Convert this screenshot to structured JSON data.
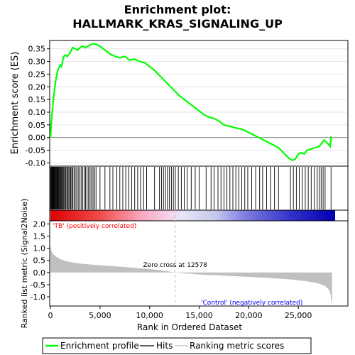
{
  "title_line1": "Enrichment plot:",
  "title_line2": "HALLMARK_KRAS_SIGNALING_UP",
  "legend": {
    "enrichment": "Enrichment profile",
    "hits": "Hits",
    "ranking": "Ranking metric scores"
  },
  "colors": {
    "es_line": "#00ff00",
    "hits": "#000000",
    "metric_fill": "#c0c0c0",
    "positive": "#ff0000",
    "negative": "#0000ff",
    "zero_line": "#c0c0c0",
    "pos_label": "#ff0000",
    "neg_label": "#0000ff"
  },
  "chart_data": [
    {
      "type": "line",
      "panel": "enrichment-score",
      "ylabel": "Enrichment score (ES)",
      "ylim": [
        -0.11,
        0.38
      ],
      "y_ticks": [
        -0.1,
        -0.05,
        0.0,
        0.05,
        0.1,
        0.15,
        0.2,
        0.25,
        0.3,
        0.35
      ],
      "y_tick_labels": [
        "-0.10",
        "-0.05",
        "0.00",
        "0.05",
        "0.10",
        "0.15",
        "0.20",
        "0.25",
        "0.30",
        "0.35"
      ],
      "grid": true,
      "points": [
        [
          0,
          0.0
        ],
        [
          80,
          0.05
        ],
        [
          180,
          0.1
        ],
        [
          300,
          0.15
        ],
        [
          420,
          0.19
        ],
        [
          550,
          0.23
        ],
        [
          700,
          0.26
        ],
        [
          850,
          0.275
        ],
        [
          1000,
          0.285
        ],
        [
          1100,
          0.28
        ],
        [
          1250,
          0.305
        ],
        [
          1350,
          0.32
        ],
        [
          1500,
          0.325
        ],
        [
          1700,
          0.32
        ],
        [
          1900,
          0.33
        ],
        [
          2050,
          0.34
        ],
        [
          2250,
          0.355
        ],
        [
          2500,
          0.35
        ],
        [
          2750,
          0.345
        ],
        [
          3000,
          0.355
        ],
        [
          3200,
          0.36
        ],
        [
          3500,
          0.355
        ],
        [
          3800,
          0.36
        ],
        [
          4000,
          0.365
        ],
        [
          4300,
          0.37
        ],
        [
          4600,
          0.368
        ],
        [
          5000,
          0.36
        ],
        [
          5500,
          0.345
        ],
        [
          6000,
          0.33
        ],
        [
          6500,
          0.32
        ],
        [
          7000,
          0.315
        ],
        [
          7500,
          0.32
        ],
        [
          8000,
          0.305
        ],
        [
          8500,
          0.31
        ],
        [
          9000,
          0.3
        ],
        [
          9500,
          0.295
        ],
        [
          10000,
          0.28
        ],
        [
          10500,
          0.265
        ],
        [
          11000,
          0.245
        ],
        [
          11500,
          0.225
        ],
        [
          12000,
          0.205
        ],
        [
          12500,
          0.185
        ],
        [
          13000,
          0.165
        ],
        [
          13500,
          0.15
        ],
        [
          14000,
          0.135
        ],
        [
          14500,
          0.12
        ],
        [
          15000,
          0.105
        ],
        [
          15500,
          0.09
        ],
        [
          16000,
          0.08
        ],
        [
          16500,
          0.075
        ],
        [
          17000,
          0.065
        ],
        [
          17500,
          0.05
        ],
        [
          18000,
          0.045
        ],
        [
          18500,
          0.04
        ],
        [
          19000,
          0.035
        ],
        [
          19500,
          0.03
        ],
        [
          20000,
          0.02
        ],
        [
          20500,
          0.01
        ],
        [
          21000,
          0.0
        ],
        [
          21500,
          -0.01
        ],
        [
          22000,
          -0.02
        ],
        [
          22500,
          -0.03
        ],
        [
          23000,
          -0.04
        ],
        [
          23500,
          -0.06
        ],
        [
          24000,
          -0.08
        ],
        [
          24400,
          -0.09
        ],
        [
          24700,
          -0.085
        ],
        [
          25000,
          -0.065
        ],
        [
          25300,
          -0.06
        ],
        [
          25600,
          -0.065
        ],
        [
          25900,
          -0.05
        ],
        [
          26300,
          -0.045
        ],
        [
          26700,
          -0.04
        ],
        [
          27100,
          -0.035
        ],
        [
          27400,
          -0.02
        ],
        [
          27600,
          -0.01
        ],
        [
          27900,
          -0.02
        ],
        [
          28200,
          -0.035
        ],
        [
          28300,
          0.005
        ]
      ]
    },
    {
      "type": "barcode",
      "panel": "hits",
      "n_genes": 28400,
      "gene_set_hit_ranks": [
        20,
        60,
        110,
        160,
        210,
        260,
        310,
        360,
        420,
        480,
        540,
        600,
        660,
        720,
        780,
        850,
        920,
        990,
        1060,
        1130,
        1200,
        1280,
        1360,
        1450,
        1550,
        1650,
        1750,
        1850,
        1950,
        2050,
        2150,
        2260,
        2380,
        2500,
        2650,
        2800,
        2950,
        3100,
        3250,
        3400,
        3550,
        3700,
        3850,
        4000,
        4150,
        4300,
        4450,
        4600,
        5000,
        5500,
        6000,
        6300,
        6700,
        7000,
        7300,
        7600,
        7900,
        8200,
        8500,
        8800,
        9100,
        9400,
        9700,
        10500,
        11000,
        11200,
        11400,
        11600,
        11800,
        12000,
        12200,
        12400,
        12600,
        12900,
        13200,
        13500,
        13800,
        14200,
        14600,
        15000,
        15700,
        16200,
        16500,
        16900,
        17200,
        17500,
        17800,
        18100,
        18400,
        18700,
        19000,
        19300,
        19600,
        19900,
        20300,
        20700,
        21100,
        21400,
        21800,
        22200,
        22600,
        23000,
        24200,
        24500,
        24800,
        25100,
        25400,
        25700,
        26000,
        26300,
        26600,
        26900,
        27100,
        27300,
        27500,
        27700,
        28300
      ]
    },
    {
      "type": "area",
      "panel": "ranked-list-metric",
      "xlabel": "Rank in Ordered Dataset",
      "ylabel": "Ranked list metric (Signal2Noise)",
      "xlim": [
        0,
        30000
      ],
      "ylim": [
        -1.35,
        2.1
      ],
      "x_ticks": [
        0,
        5000,
        10000,
        15000,
        20000,
        25000
      ],
      "x_tick_labels": [
        "0",
        "5,000",
        "10,000",
        "15,000",
        "20,000",
        "25,000"
      ],
      "y_ticks": [
        -1.0,
        -0.5,
        0.0,
        0.5,
        1.0,
        1.5,
        2.0
      ],
      "y_tick_labels": [
        "-1.0",
        "-0.5",
        "0.0",
        "0.5",
        "1.0",
        "1.5",
        "2.0"
      ],
      "zero_cross_rank": 12578,
      "annotations": {
        "zero_cross": "Zero cross at 12578",
        "positive": "'TB' (positively correlated)",
        "negative": "'Control' (negatively correlated)"
      },
      "points": [
        [
          0,
          1.1
        ],
        [
          100,
          0.9
        ],
        [
          300,
          0.75
        ],
        [
          600,
          0.65
        ],
        [
          1000,
          0.55
        ],
        [
          1500,
          0.48
        ],
        [
          2000,
          0.43
        ],
        [
          3000,
          0.37
        ],
        [
          4000,
          0.33
        ],
        [
          5000,
          0.3
        ],
        [
          6000,
          0.27
        ],
        [
          7000,
          0.24
        ],
        [
          8000,
          0.21
        ],
        [
          9000,
          0.18
        ],
        [
          10000,
          0.14
        ],
        [
          11000,
          0.1
        ],
        [
          12000,
          0.04
        ],
        [
          12578,
          0.0
        ],
        [
          13000,
          -0.02
        ],
        [
          14000,
          -0.05
        ],
        [
          15000,
          -0.08
        ],
        [
          16000,
          -0.1
        ],
        [
          17000,
          -0.12
        ],
        [
          18000,
          -0.14
        ],
        [
          19000,
          -0.16
        ],
        [
          20000,
          -0.18
        ],
        [
          21000,
          -0.2
        ],
        [
          22000,
          -0.22
        ],
        [
          23000,
          -0.25
        ],
        [
          24000,
          -0.28
        ],
        [
          25000,
          -0.32
        ],
        [
          26000,
          -0.37
        ],
        [
          26800,
          -0.43
        ],
        [
          27400,
          -0.5
        ],
        [
          27800,
          -0.58
        ],
        [
          28100,
          -0.72
        ],
        [
          28250,
          -0.9
        ],
        [
          28350,
          -1.25
        ],
        [
          28400,
          -1.25
        ]
      ]
    }
  ]
}
